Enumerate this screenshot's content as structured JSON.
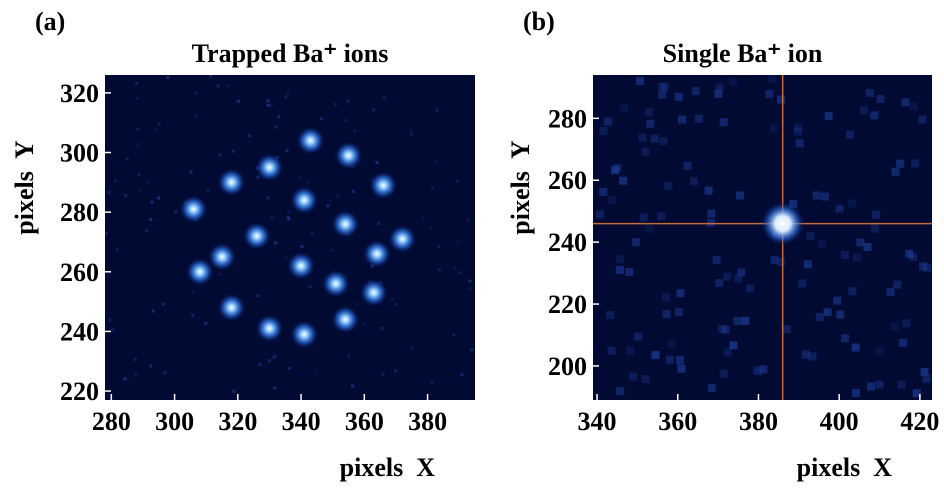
{
  "chart_data": [
    {
      "type": "scatter",
      "panel_label": "(a)",
      "title": "Trapped  Ba⁺ ions",
      "x_label": "pixels  X",
      "y_label": "pixels  Y",
      "x": [
        318,
        330,
        306,
        341,
        354,
        366,
        326,
        340,
        315,
        308,
        351,
        364,
        363,
        372,
        318,
        330,
        341,
        354,
        355,
        343
      ],
      "y": [
        290,
        295,
        281,
        284,
        276,
        289,
        272,
        262,
        265,
        260,
        256,
        266,
        253,
        271,
        248,
        241,
        239,
        244,
        299,
        304
      ],
      "color": "#5aa8ff",
      "background": "#000a33",
      "xlim": [
        278,
        395
      ],
      "ylim": [
        217,
        326
      ],
      "xticks": [
        280,
        300,
        320,
        340,
        360,
        380
      ],
      "yticks": [
        220,
        240,
        260,
        280,
        300,
        320
      ]
    },
    {
      "type": "scatter",
      "panel_label": "(b)",
      "title": "Single Ba⁺ ion",
      "x_label": "pixels  X",
      "y_label": "pixels  Y",
      "x": [
        386
      ],
      "y": [
        246
      ],
      "color": "#ffffff",
      "background": "#000a33",
      "crosshair": "#c86a3a",
      "xlim": [
        339,
        423
      ],
      "ylim": [
        189,
        294
      ],
      "xticks": [
        340,
        360,
        380,
        400,
        420
      ],
      "yticks": [
        200,
        220,
        240,
        260,
        280
      ]
    }
  ]
}
